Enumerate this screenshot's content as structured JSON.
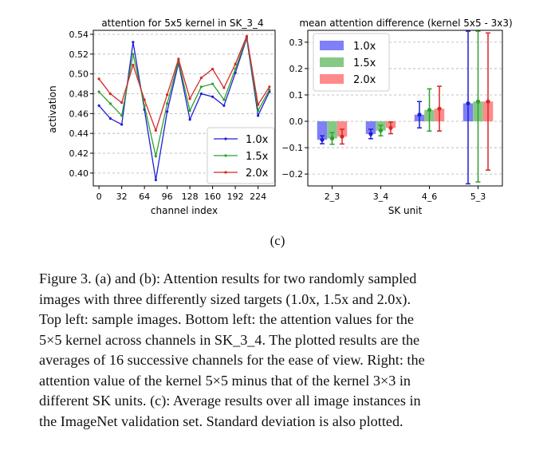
{
  "chart_data": [
    {
      "type": "line",
      "title": "attention for 5x5 kernel in SK_3_4",
      "xlabel": "channel index",
      "ylabel": "activation",
      "x": [
        0,
        16,
        32,
        48,
        64,
        80,
        96,
        112,
        128,
        144,
        160,
        176,
        192,
        208,
        224,
        240
      ],
      "xticks": [
        "0",
        "32",
        "64",
        "96",
        "128",
        "160",
        "192",
        "224"
      ],
      "xlim": [
        -8,
        248
      ],
      "ylim": [
        0.387,
        0.544
      ],
      "yticks": [
        "0.40",
        "0.42",
        "0.44",
        "0.46",
        "0.48",
        "0.50",
        "0.52",
        "0.54"
      ],
      "grid": true,
      "legend": "lower-right",
      "series": [
        {
          "name": "1.0x",
          "color": "#1f1fd6",
          "values": [
            0.468,
            0.455,
            0.449,
            0.532,
            0.464,
            0.393,
            0.462,
            0.511,
            0.454,
            0.48,
            0.477,
            0.468,
            0.501,
            0.536,
            0.458,
            0.482
          ]
        },
        {
          "name": "1.5x",
          "color": "#2ca02c",
          "values": [
            0.482,
            0.47,
            0.458,
            0.52,
            0.468,
            0.417,
            0.47,
            0.513,
            0.463,
            0.487,
            0.49,
            0.474,
            0.505,
            0.537,
            0.463,
            0.484
          ]
        },
        {
          "name": "2.0x",
          "color": "#d62728",
          "values": [
            0.495,
            0.48,
            0.471,
            0.509,
            0.474,
            0.443,
            0.479,
            0.515,
            0.475,
            0.496,
            0.505,
            0.486,
            0.51,
            0.538,
            0.469,
            0.487
          ]
        }
      ]
    },
    {
      "type": "bar",
      "title": "mean attention difference (kernel 5x5 - 3x3)",
      "xlabel": "SK unit",
      "ylabel": "",
      "categories": [
        "2_3",
        "3_4",
        "4_6",
        "5_3"
      ],
      "ylim": [
        -0.245,
        0.345
      ],
      "yticks": [
        "−0.2",
        "−0.1",
        "0.0",
        "0.1",
        "0.2",
        "0.3"
      ],
      "grid": true,
      "legend": "upper-left",
      "series": [
        {
          "name": "1.0x",
          "color": "#7f7ff7",
          "dark": "#1f1fd6",
          "values": [
            -0.07,
            -0.048,
            0.025,
            0.068
          ],
          "err": [
            0.015,
            0.018,
            0.05,
            0.305
          ]
        },
        {
          "name": "1.5x",
          "color": "#85c985",
          "dark": "#2ca02c",
          "values": [
            -0.065,
            -0.035,
            0.043,
            0.075
          ],
          "err": [
            0.022,
            0.02,
            0.08,
            0.305
          ]
        },
        {
          "name": "2.0x",
          "color": "#ff8a8a",
          "dark": "#d62728",
          "values": [
            -0.058,
            -0.025,
            0.048,
            0.075
          ],
          "err": [
            0.028,
            0.022,
            0.085,
            0.26
          ]
        }
      ]
    }
  ],
  "figure_label": "(c)",
  "caption": [
    "Figure 3. (a) and (b): Attention results for two randomly sampled",
    "images with three differently sized targets (1.0x, 1.5x and 2.0x).",
    "Top left: sample images. Bottom left: the attention values for the",
    "5×5 kernel across channels in SK_3_4. The plotted results are the",
    "averages of 16 successive channels for the ease of view. Right: the",
    "attention value of the kernel 5×5 minus that of the kernel 3×3 in",
    "different SK units. (c): Average results over all image instances in",
    "the ImageNet validation set. Standard deviation is also plotted."
  ]
}
